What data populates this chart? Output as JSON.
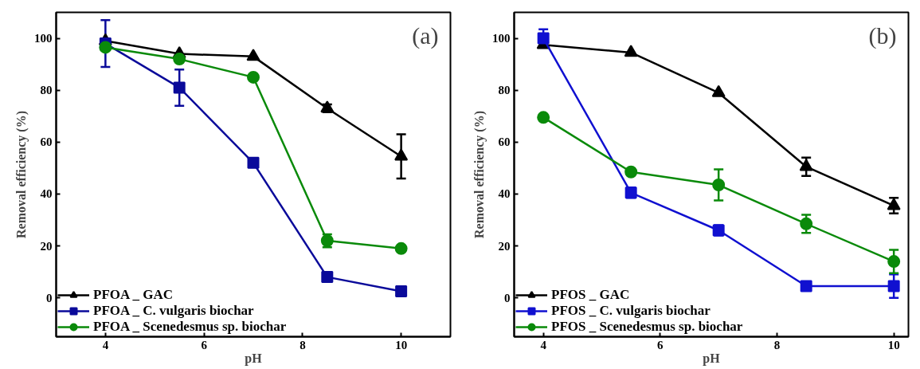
{
  "chart_data": [
    {
      "type": "line",
      "xlabel": "pH",
      "ylabel": "Removal efficiency (%)",
      "annotations": [
        "(a)"
      ],
      "x": [
        4,
        5.5,
        7,
        8.5,
        10
      ],
      "xlim": [
        3,
        11
      ],
      "xticks": [
        4,
        6,
        8,
        10
      ],
      "ylim": [
        -15,
        110
      ],
      "yticks": [
        0,
        20,
        40,
        60,
        80,
        100
      ],
      "grid": false,
      "legend": "bottom left",
      "line_style": "solid",
      "series": [
        {
          "name": "PFOA _ GAC",
          "color": "#000000",
          "marker": "triangle",
          "values": [
            99,
            94,
            93,
            73,
            54.5
          ],
          "errors": [
            null,
            null,
            null,
            1.5,
            8.5
          ]
        },
        {
          "name": "PFOA _ C. vulgaris biochar",
          "color": "#0a0a9a",
          "marker": "square",
          "values": [
            98,
            81,
            52,
            8,
            2.5
          ],
          "errors": [
            9,
            7,
            null,
            null,
            null
          ]
        },
        {
          "name": "PFOA _ Scenedesmus sp. biochar",
          "color": "#0a8a0a",
          "marker": "circle",
          "values": [
            96.5,
            92,
            85,
            22,
            19
          ],
          "errors": [
            null,
            null,
            null,
            2.5,
            null
          ]
        }
      ]
    },
    {
      "type": "line",
      "xlabel": "pH",
      "ylabel": "Removal efficiency (%)",
      "annotations": [
        "(b)"
      ],
      "x": [
        4,
        5.5,
        7,
        8.5,
        10
      ],
      "xlim": [
        3.5,
        10.25
      ],
      "xticks": [
        4,
        6,
        8,
        10
      ],
      "ylim": [
        -15,
        110
      ],
      "yticks": [
        0,
        20,
        40,
        60,
        80,
        100
      ],
      "grid": false,
      "legend": "bottom left",
      "line_style": "solid",
      "series": [
        {
          "name": "PFOS _ GAC",
          "color": "#000000",
          "marker": "triangle",
          "values": [
            97.5,
            94.5,
            79,
            50.5,
            35.5
          ],
          "errors": [
            null,
            null,
            null,
            3.5,
            3
          ]
        },
        {
          "name": "PFOS _ C. vulgaris biochar",
          "color": "#1010d0",
          "marker": "square",
          "values": [
            100,
            40.5,
            26,
            4.5,
            4.5
          ],
          "errors": [
            3.5,
            2,
            2,
            null,
            4.5
          ]
        },
        {
          "name": "PFOS _ Scenedesmus sp. biochar",
          "color": "#0a8a0a",
          "marker": "circle",
          "values": [
            69.5,
            48.5,
            43.5,
            28.5,
            14
          ],
          "errors": [
            null,
            null,
            6,
            3.5,
            4.5
          ]
        }
      ]
    }
  ]
}
